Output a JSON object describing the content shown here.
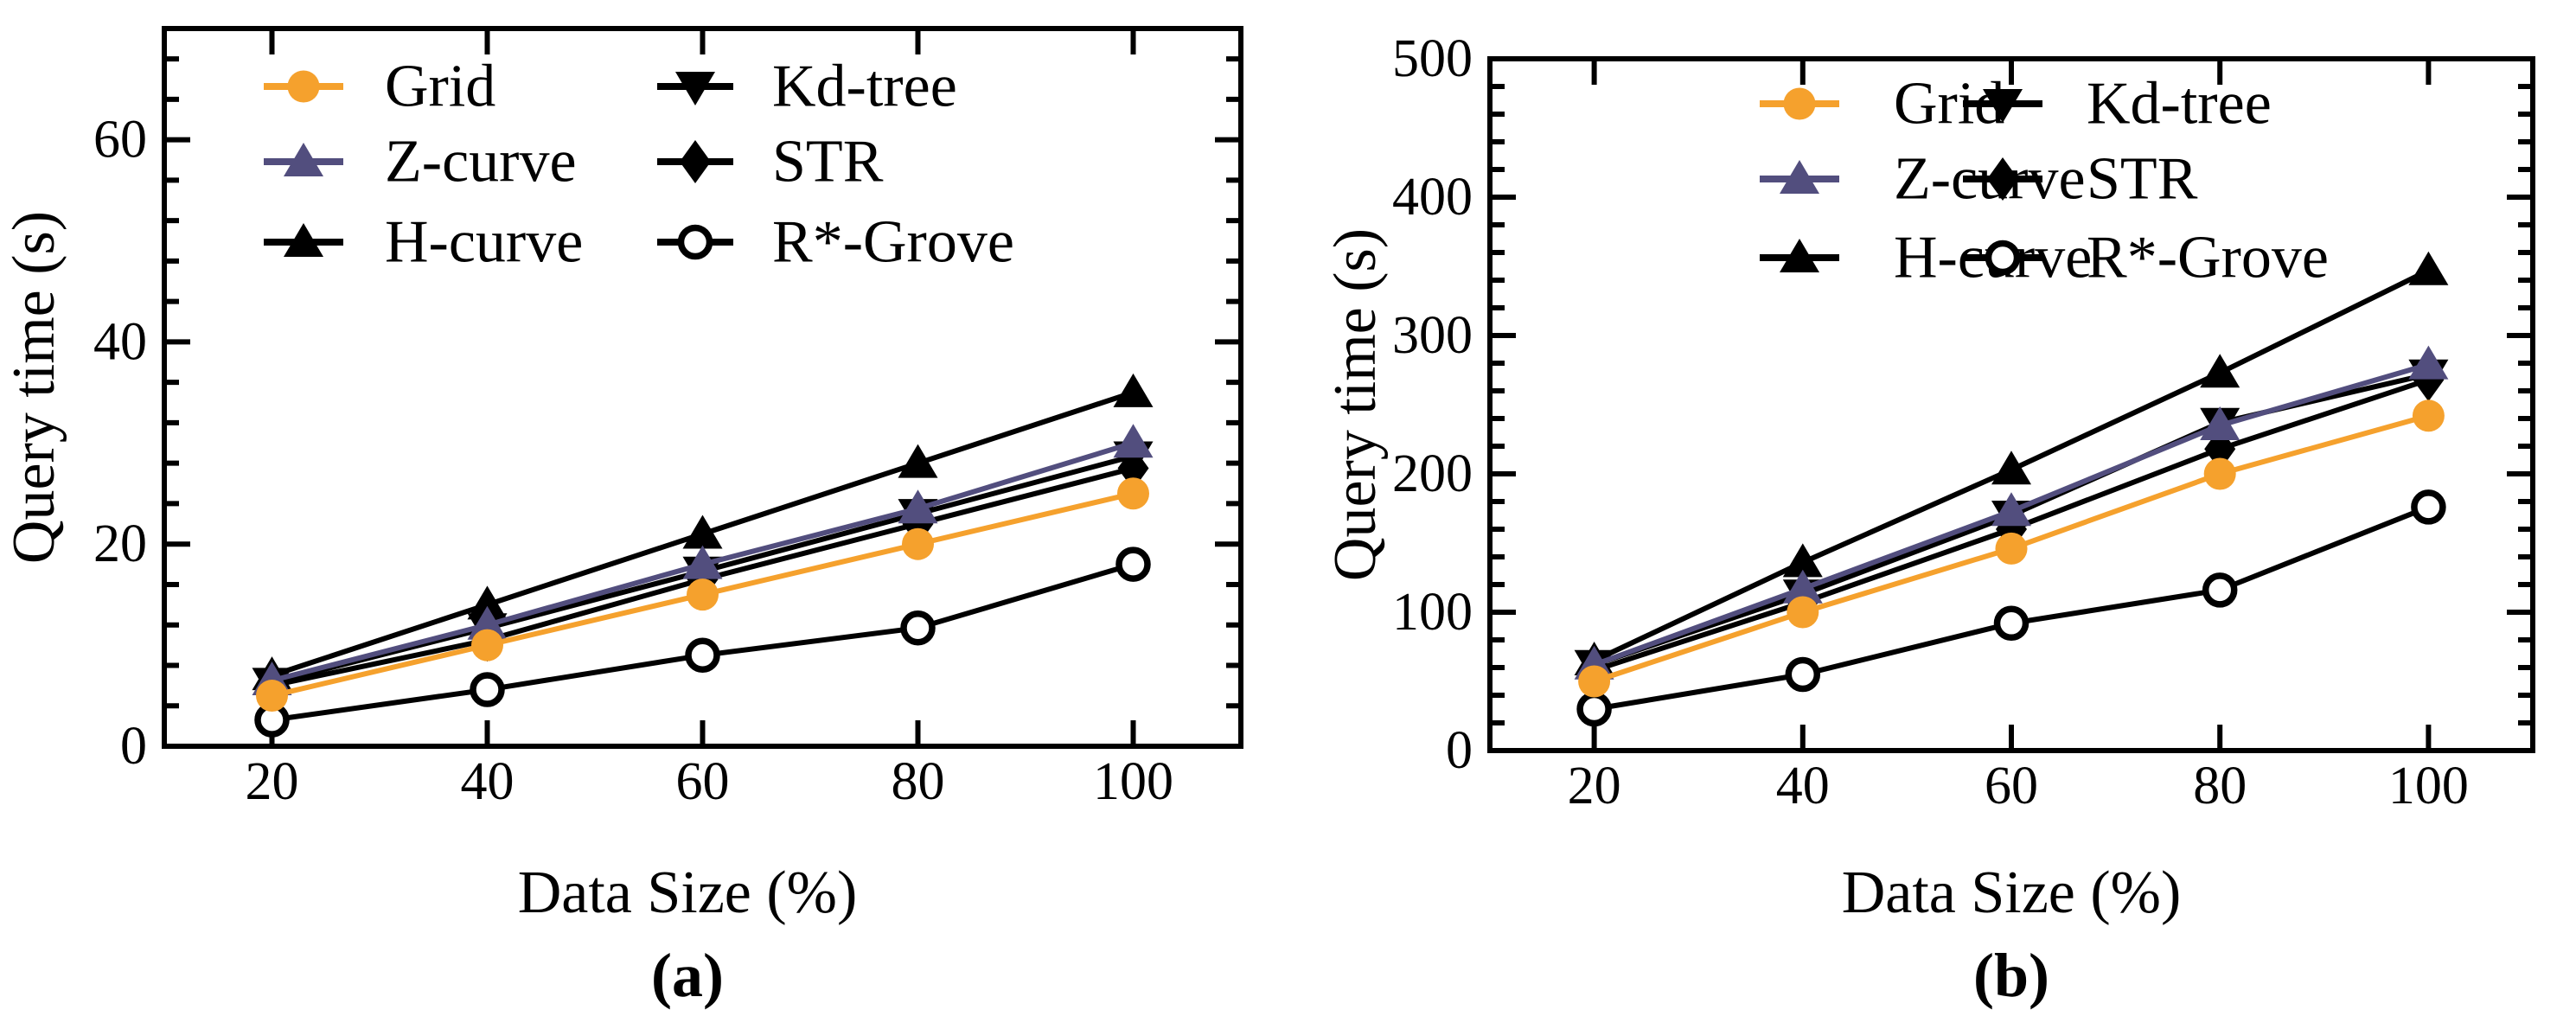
{
  "figure": {
    "background": "#ffffff",
    "text_color": "#000000"
  },
  "chart_data": [
    {
      "panel": "a",
      "type": "line",
      "caption": "(a)",
      "xlabel": "Data Size (%)",
      "ylabel": "Query time (s)",
      "x": [
        20,
        40,
        60,
        80,
        100
      ],
      "xticks": [
        20,
        40,
        60,
        80,
        100
      ],
      "yticks": [
        0,
        20,
        40,
        60
      ],
      "xlim": [
        10,
        110
      ],
      "ylim": [
        0,
        71
      ],
      "y_minor_step": 4,
      "grid": false,
      "legend_position": "top-inside-two-columns",
      "series": [
        {
          "name": "Grid",
          "marker": "circle",
          "color": "#F5A12D",
          "values": [
            5,
            10,
            15,
            20,
            25
          ]
        },
        {
          "name": "Z-curve",
          "marker": "triangle-up",
          "color": "#524E7E",
          "values": [
            6.5,
            12,
            18,
            23.5,
            30
          ]
        },
        {
          "name": "H-curve",
          "marker": "triangle-up",
          "color": "#000000",
          "values": [
            7,
            14,
            21,
            28,
            35
          ]
        },
        {
          "name": "Kd-tree",
          "marker": "triangle-down",
          "color": "#000000",
          "values": [
            6.3,
            11.7,
            17.3,
            23,
            28.7
          ]
        },
        {
          "name": "STR",
          "marker": "diamond",
          "color": "#000000",
          "values": [
            6,
            10.5,
            16.5,
            22,
            27.5
          ]
        },
        {
          "name": "R*-Grove",
          "marker": "open-circle",
          "color": "#000000",
          "values": [
            2.6,
            5.6,
            9,
            11.7,
            18
          ]
        }
      ]
    },
    {
      "panel": "b",
      "type": "line",
      "caption": "(b)",
      "xlabel": "Data Size (%)",
      "ylabel": "Query time (s)",
      "x": [
        20,
        40,
        60,
        80,
        100
      ],
      "xticks": [
        20,
        40,
        60,
        80,
        100
      ],
      "yticks": [
        0,
        100,
        200,
        300,
        400,
        500
      ],
      "xlim": [
        10,
        110
      ],
      "ylim": [
        0,
        500
      ],
      "y_minor_step": 20,
      "grid": false,
      "legend_position": "top-inside-two-columns",
      "series": [
        {
          "name": "Grid",
          "marker": "circle",
          "color": "#F5A12D",
          "values": [
            50,
            100,
            146,
            200,
            242
          ]
        },
        {
          "name": "Z-curve",
          "marker": "triangle-up",
          "color": "#524E7E",
          "values": [
            62,
            117,
            173,
            235,
            279
          ]
        },
        {
          "name": "H-curve",
          "marker": "triangle-up",
          "color": "#000000",
          "values": [
            65,
            136,
            203,
            273,
            347
          ]
        },
        {
          "name": "Kd-tree",
          "marker": "triangle-down",
          "color": "#000000",
          "values": [
            62,
            113,
            170,
            237,
            272
          ]
        },
        {
          "name": "STR",
          "marker": "diamond",
          "color": "#000000",
          "values": [
            58,
            107,
            160,
            218,
            268
          ]
        },
        {
          "name": "R*-Grove",
          "marker": "open-circle",
          "color": "#000000",
          "values": [
            30,
            55,
            92,
            116,
            176
          ]
        }
      ]
    }
  ]
}
